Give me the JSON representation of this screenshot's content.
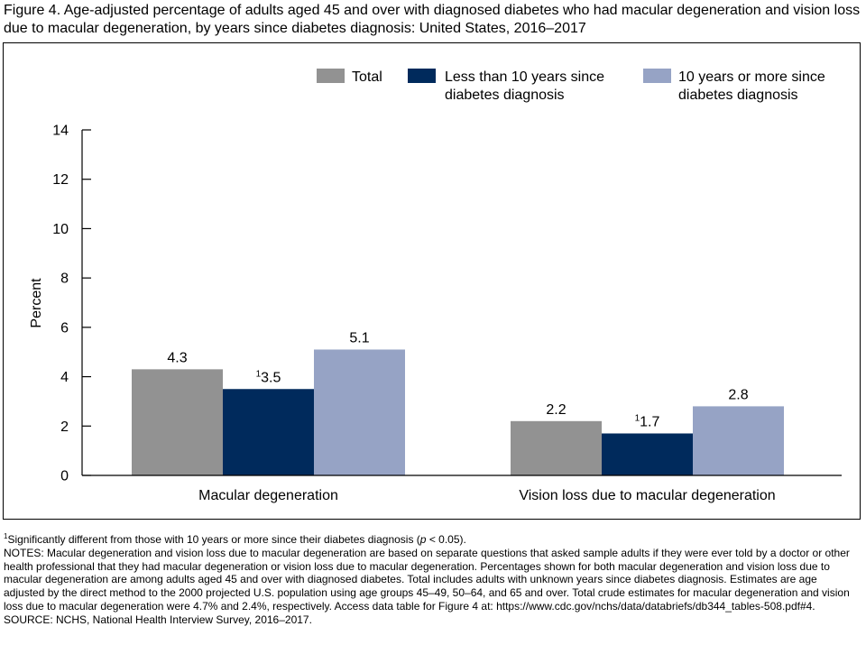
{
  "title": "Figure 4. Age-adjusted percentage of adults aged 45 and over with diagnosed diabetes who had macular degeneration and vision loss due to macular degeneration, by years since diabetes diagnosis: United States, 2016–2017",
  "chart_data": {
    "type": "bar",
    "title": "Figure 4. Age-adjusted percentage of adults aged 45 and over with diagnosed diabetes who had macular degeneration and vision loss due to macular degeneration, by years since diabetes diagnosis: United States, 2016–2017",
    "xlabel": "",
    "ylabel": "Percent",
    "ylim": [
      0,
      14
    ],
    "yticks": [
      0,
      2,
      4,
      6,
      8,
      10,
      12,
      14
    ],
    "ytick_labels": [
      "0",
      "2",
      "4",
      "6",
      "8",
      "10",
      "12",
      "14"
    ],
    "grid": false,
    "legend_position": "top-right",
    "categories": [
      "Macular degeneration",
      "Vision loss due to macular degeneration"
    ],
    "series": [
      {
        "name": "Total",
        "color": "#929292",
        "values": [
          4.3,
          2.2
        ],
        "labels": [
          "4.3",
          "2.2"
        ],
        "label_marks": [
          "",
          ""
        ]
      },
      {
        "name": "Less than 10 years since diabetes diagnosis",
        "legend_lines": [
          "Less than 10 years since",
          "diabetes diagnosis"
        ],
        "color": "#002a5c",
        "values": [
          3.5,
          1.7
        ],
        "labels": [
          "3.5",
          "1.7"
        ],
        "label_marks": [
          "1",
          "1"
        ]
      },
      {
        "name": "10 years or more since diabetes diagnosis",
        "legend_lines": [
          "10 years or more since",
          "diabetes diagnosis"
        ],
        "color": "#96a3c5",
        "values": [
          5.1,
          2.8
        ],
        "labels": [
          "5.1",
          "2.8"
        ],
        "label_marks": [
          "",
          ""
        ]
      }
    ]
  },
  "notes": {
    "footnote_mark": "1",
    "footnote_text_before": "Significantly different from those with 10 years or more since their diabetes diagnosis (",
    "footnote_p": "p",
    "footnote_text_after": " < 0.05).",
    "notes_text": "NOTES: Macular degeneration and vision loss due to macular degeneration are based on separate questions that asked sample adults if they were ever told by a doctor or other health professional that they had macular degeneration or vision loss due to macular degeneration. Percentages shown for both macular degeneration and vision loss due to macular degeneration are among adults aged 45 and over with diagnosed diabetes. Total includes adults with unknown years since diabetes diagnosis. Estimates are age adjusted by the direct method to the 2000 projected U.S. population using age groups 45–49, 50–64, and 65 and over. Total crude estimates for macular degeneration and vision loss due to macular degeneration were 4.7% and 2.4%, respectively. Access data table for Figure 4 at: https://www.cdc.gov/nchs/data/databriefs/db344_tables-508.pdf#4.",
    "source_text": "SOURCE: NCHS, National Health Interview Survey, 2016–2017."
  }
}
